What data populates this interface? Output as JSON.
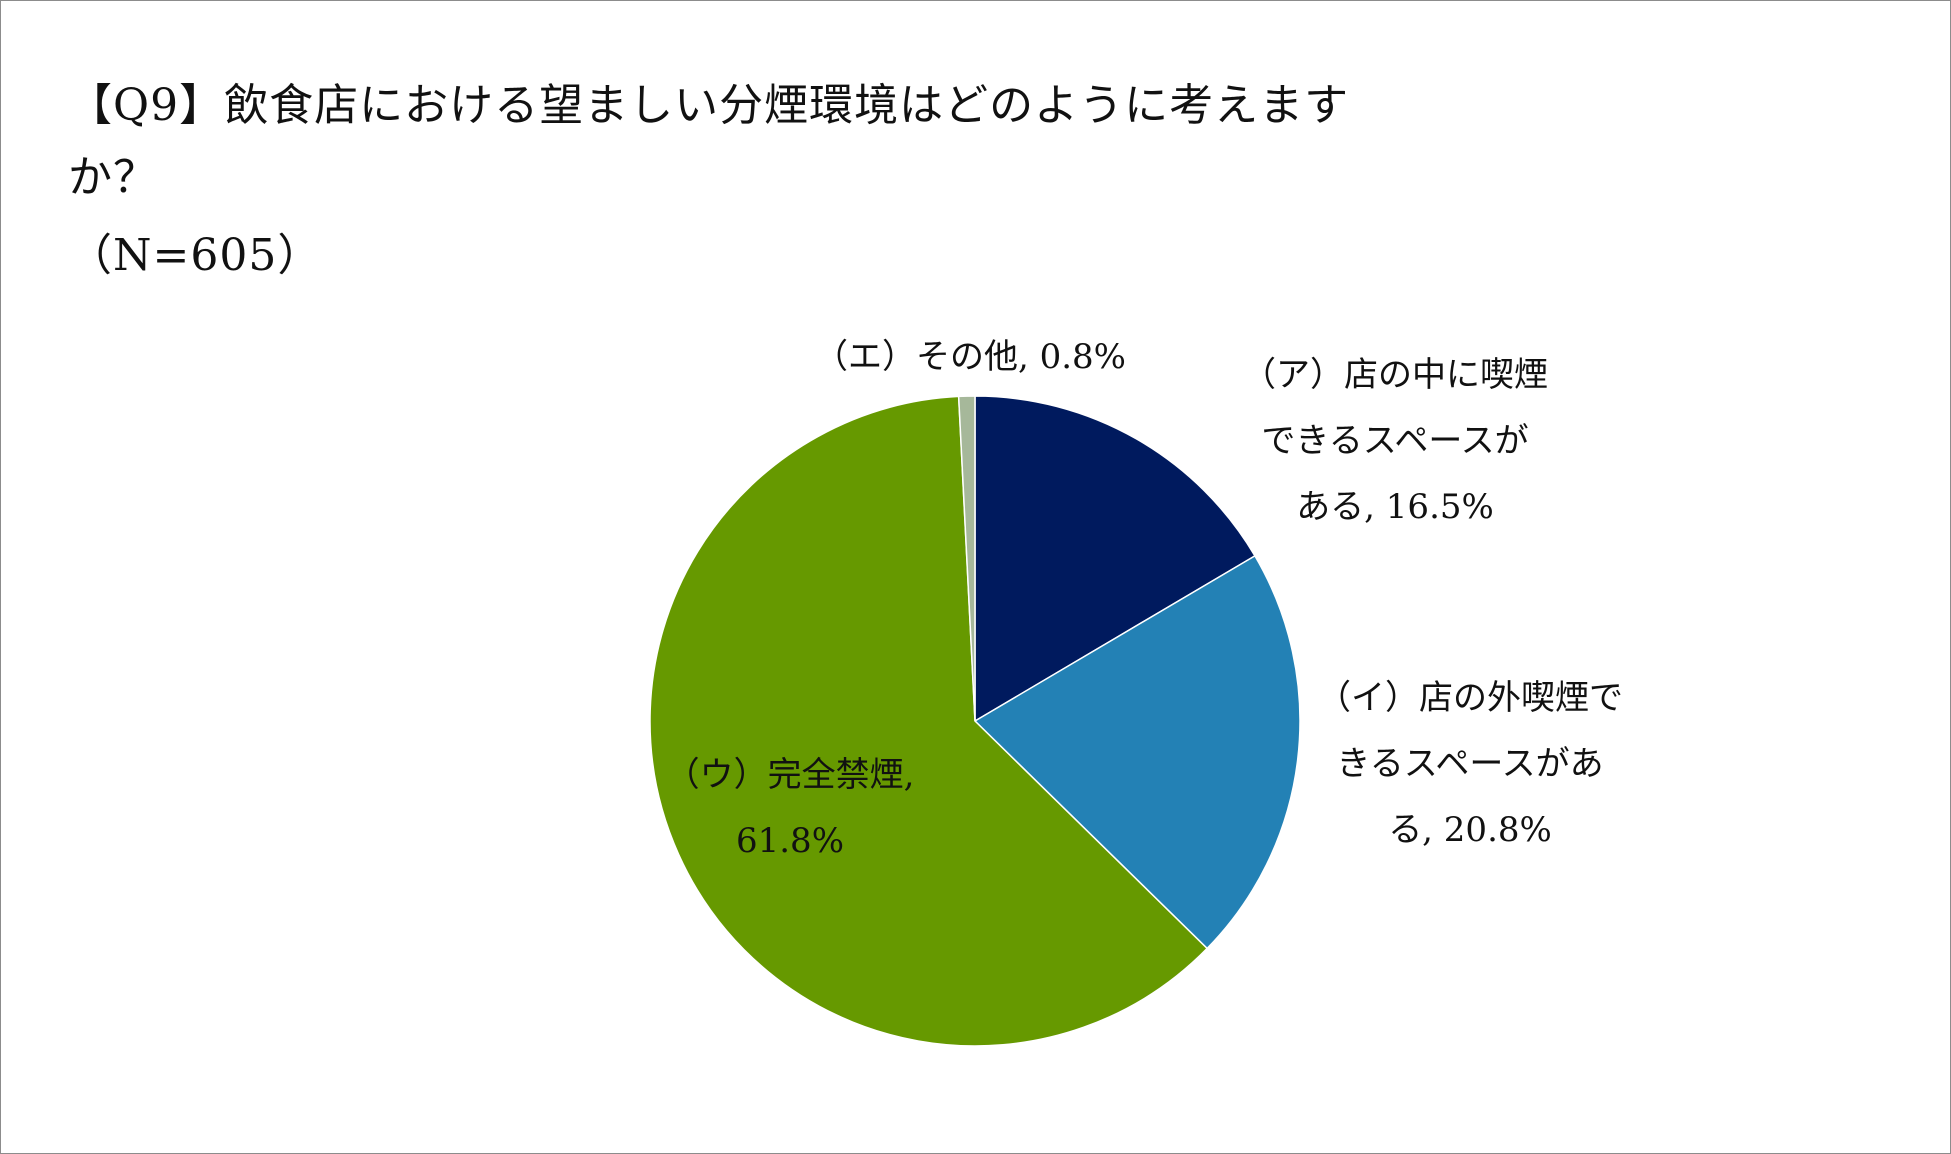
{
  "chart_data": {
    "type": "pie",
    "title": "【Q9】飲食店における望ましい分煙環境はどのように考えますか？",
    "subtitle": "（N=605）",
    "start_angle_deg": 0,
    "direction": "clockwise",
    "legend": "none",
    "slices": [
      {
        "label": "（ア）店の中に喫煙できるスペースがある",
        "value": 16.5,
        "display": "（ア）店の中に喫煙できるスペースがある, 16.5%",
        "label_lines": [
          "（ア）店の中に喫煙",
          "できるスペースが",
          "ある, 16.5%"
        ],
        "color": "#001a5e"
      },
      {
        "label": "（イ）店の外喫煙できるスペースがある",
        "value": 20.8,
        "display": "（イ）店の外喫煙できるスペースがある, 20.8%",
        "label_lines": [
          "（イ）店の外喫煙で",
          "きるスペースがあ",
          "る, 20.8%"
        ],
        "color": "#2381b5"
      },
      {
        "label": "（ウ）完全禁煙",
        "value": 61.8,
        "display": "（ウ）完全禁煙, 61.8%",
        "label_lines": [
          "（ウ）完全禁煙,",
          "61.8%"
        ],
        "color": "#669900"
      },
      {
        "label": "（エ）その他",
        "value": 0.8,
        "display": "（エ）その他, 0.8%",
        "label_lines": [
          "（エ）その他, 0.8%"
        ],
        "color": "#a6b89a"
      }
    ]
  },
  "title_lines": [
    "【Q9】飲食店における望ましい分煙環境はどのように考えます",
    "か？"
  ],
  "n_label": "（N=605）"
}
